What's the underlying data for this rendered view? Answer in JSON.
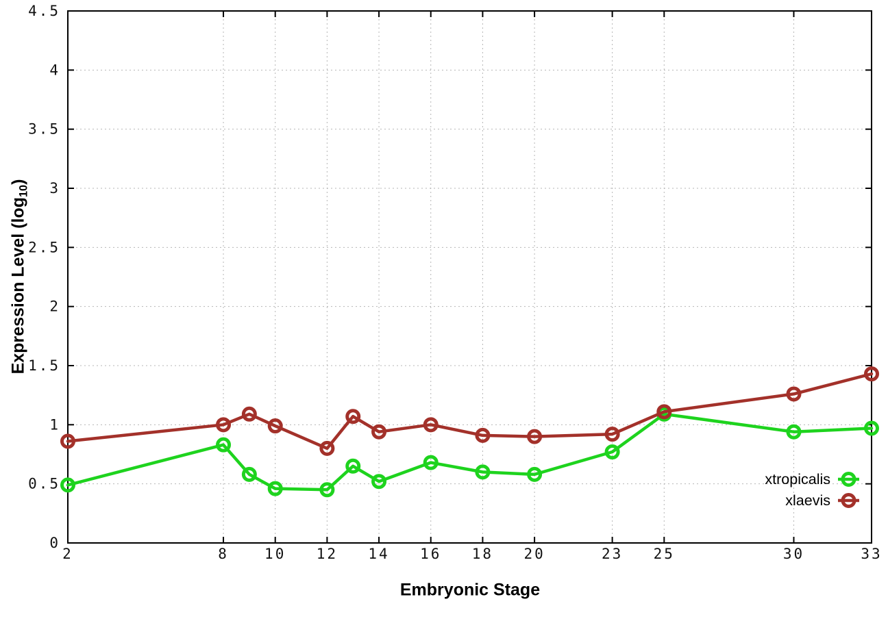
{
  "chart_data": {
    "type": "line",
    "title": "",
    "xlabel": "Embryonic Stage",
    "ylabel": "Expression Level (log10)",
    "ylabel_parts": {
      "main": "Expression Level (log",
      "sub": "10",
      "end": ")"
    },
    "xlim": [
      2,
      33
    ],
    "ylim": [
      0,
      4.5
    ],
    "grid": true,
    "legend_position": "inside-right",
    "x": [
      2,
      8,
      9,
      10,
      12,
      13,
      14,
      16,
      18,
      20,
      23,
      25,
      30,
      33
    ],
    "xtick_labels": [
      2,
      8,
      10,
      12,
      14,
      16,
      18,
      20,
      23,
      25,
      30,
      33
    ],
    "ytick_labels": [
      "0",
      "0.5",
      "1",
      "1.5",
      "2",
      "2.5",
      "3",
      "3.5",
      "4",
      "4.5"
    ],
    "ytick_values": [
      0,
      0.5,
      1,
      1.5,
      2,
      2.5,
      3,
      3.5,
      4,
      4.5
    ],
    "series": [
      {
        "name": "xtropicalis",
        "color": "#1ed31e",
        "values": [
          0.49,
          0.83,
          0.58,
          0.46,
          0.45,
          0.65,
          0.52,
          0.68,
          0.6,
          0.58,
          0.77,
          1.09,
          0.94,
          0.97
        ]
      },
      {
        "name": "xlaevis",
        "color": "#a3312a",
        "values": [
          0.86,
          1.0,
          1.09,
          0.99,
          0.8,
          1.07,
          0.94,
          1.0,
          0.91,
          0.9,
          0.92,
          1.11,
          1.26,
          1.43
        ]
      }
    ],
    "colors": {
      "border": "#000000",
      "grid": "#b5b5b5",
      "tick_text": "#111111",
      "background": "#ffffff"
    }
  }
}
